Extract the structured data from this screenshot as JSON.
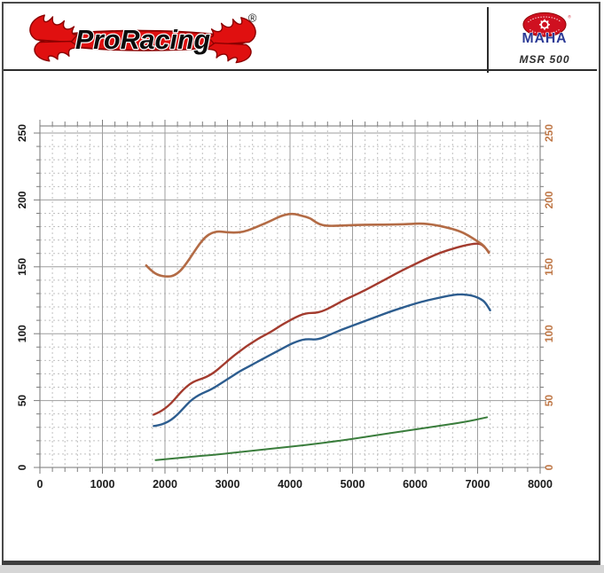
{
  "header": {
    "brand_logo_text": "ProRacing",
    "registered_mark": "®",
    "device_logo_text": "MAHA",
    "device_registered_mark": "®",
    "device_model_label": "MSR 500"
  },
  "colors": {
    "flame_red": "#e01010",
    "flame_outline": "#8a0000",
    "maha_red": "#cf1020",
    "maha_blue": "#2b3a96",
    "grid_major": "#9e9e9e",
    "grid_minor": "#c0c0c0",
    "plot_border": "#8c8c8c",
    "axis_label_left": "#1a1a1a",
    "axis_label_right": "#bf7848"
  },
  "chart_data": {
    "type": "line",
    "title": "",
    "xlabel": "",
    "ylabel": "",
    "x_range": [
      0,
      8000
    ],
    "y_range": [
      0,
      255
    ],
    "x_ticks": [
      0,
      1000,
      2000,
      3000,
      4000,
      5000,
      6000,
      7000,
      8000
    ],
    "y_ticks_left": [
      0,
      50,
      100,
      150,
      200,
      250
    ],
    "y_ticks_right": [
      0,
      50,
      100,
      150,
      200,
      250
    ],
    "x_minor_step": 200,
    "y_minor_step": 10,
    "grid": "major-solid-minor-dashed",
    "legend": "none",
    "series": [
      {
        "name": "green-curve",
        "color": "#3a7d3c",
        "width": 2.0,
        "points": [
          [
            1850,
            5.5
          ],
          [
            2300,
            7.5
          ],
          [
            2800,
            9.5
          ],
          [
            3300,
            12
          ],
          [
            3800,
            14.5
          ],
          [
            4300,
            17
          ],
          [
            4800,
            20
          ],
          [
            5300,
            23.5
          ],
          [
            5800,
            27
          ],
          [
            6300,
            30.5
          ],
          [
            6800,
            34
          ],
          [
            7150,
            37.5
          ]
        ]
      },
      {
        "name": "blue-curve",
        "color": "#2d5d8f",
        "width": 2.4,
        "points": [
          [
            1820,
            31
          ],
          [
            1900,
            31.5
          ],
          [
            2000,
            33
          ],
          [
            2100,
            35.5
          ],
          [
            2200,
            39.5
          ],
          [
            2300,
            44.5
          ],
          [
            2400,
            49.5
          ],
          [
            2500,
            53
          ],
          [
            2600,
            55.5
          ],
          [
            2700,
            57.5
          ],
          [
            2800,
            60
          ],
          [
            2900,
            63
          ],
          [
            3000,
            66
          ],
          [
            3100,
            69
          ],
          [
            3200,
            72
          ],
          [
            3300,
            74.5
          ],
          [
            3400,
            77
          ],
          [
            3500,
            79.5
          ],
          [
            3600,
            82
          ],
          [
            3700,
            84.5
          ],
          [
            3800,
            87
          ],
          [
            3900,
            89.5
          ],
          [
            4000,
            92
          ],
          [
            4100,
            94
          ],
          [
            4200,
            95.5
          ],
          [
            4300,
            96
          ],
          [
            4400,
            95.5
          ],
          [
            4500,
            96.5
          ],
          [
            4600,
            98.5
          ],
          [
            4700,
            100.5
          ],
          [
            4800,
            102.5
          ],
          [
            5000,
            106
          ],
          [
            5200,
            109.5
          ],
          [
            5400,
            113
          ],
          [
            5600,
            116.5
          ],
          [
            5800,
            119.5
          ],
          [
            6000,
            122.5
          ],
          [
            6200,
            125
          ],
          [
            6400,
            127
          ],
          [
            6550,
            128.5
          ],
          [
            6700,
            129.5
          ],
          [
            6850,
            129
          ],
          [
            6950,
            128
          ],
          [
            7050,
            126
          ],
          [
            7120,
            123.5
          ],
          [
            7200,
            117.5
          ]
        ]
      },
      {
        "name": "red-curve",
        "color": "#a33b2e",
        "width": 2.4,
        "points": [
          [
            1820,
            39.5
          ],
          [
            1900,
            41
          ],
          [
            2000,
            44
          ],
          [
            2100,
            48
          ],
          [
            2200,
            53.5
          ],
          [
            2300,
            58.5
          ],
          [
            2400,
            62.5
          ],
          [
            2500,
            65
          ],
          [
            2600,
            66.5
          ],
          [
            2700,
            68.5
          ],
          [
            2800,
            71.5
          ],
          [
            2900,
            75.5
          ],
          [
            3000,
            79.5
          ],
          [
            3100,
            83.5
          ],
          [
            3200,
            87
          ],
          [
            3300,
            90.5
          ],
          [
            3400,
            93.5
          ],
          [
            3500,
            96.5
          ],
          [
            3600,
            99
          ],
          [
            3700,
            101.5
          ],
          [
            3800,
            104.5
          ],
          [
            3900,
            107.5
          ],
          [
            4000,
            110
          ],
          [
            4100,
            112.5
          ],
          [
            4200,
            114.5
          ],
          [
            4300,
            115.5
          ],
          [
            4400,
            115.5
          ],
          [
            4500,
            116.5
          ],
          [
            4600,
            118.5
          ],
          [
            4700,
            121
          ],
          [
            4800,
            123.5
          ],
          [
            4900,
            126
          ],
          [
            5000,
            128
          ],
          [
            5200,
            132.5
          ],
          [
            5400,
            137.5
          ],
          [
            5600,
            142.5
          ],
          [
            5800,
            147.5
          ],
          [
            6000,
            152
          ],
          [
            6200,
            156.5
          ],
          [
            6400,
            160.5
          ],
          [
            6600,
            163.5
          ],
          [
            6750,
            165.5
          ],
          [
            6900,
            167
          ],
          [
            7000,
            167.5
          ],
          [
            7080,
            166.5
          ],
          [
            7180,
            161
          ]
        ]
      },
      {
        "name": "orange-curve",
        "color": "#b36b45",
        "width": 2.6,
        "points": [
          [
            1700,
            151
          ],
          [
            1780,
            147
          ],
          [
            1900,
            143.5
          ],
          [
            2050,
            142.5
          ],
          [
            2150,
            143.5
          ],
          [
            2250,
            147
          ],
          [
            2350,
            153
          ],
          [
            2450,
            160
          ],
          [
            2550,
            167
          ],
          [
            2650,
            172.5
          ],
          [
            2750,
            175.5
          ],
          [
            2850,
            176.5
          ],
          [
            2950,
            176
          ],
          [
            3100,
            175.5
          ],
          [
            3250,
            176
          ],
          [
            3400,
            178.5
          ],
          [
            3550,
            181.5
          ],
          [
            3700,
            184.5
          ],
          [
            3850,
            188
          ],
          [
            3980,
            189.5
          ],
          [
            4080,
            189.5
          ],
          [
            4200,
            188
          ],
          [
            4320,
            186.5
          ],
          [
            4420,
            183
          ],
          [
            4520,
            181
          ],
          [
            4650,
            180.5
          ],
          [
            4900,
            181
          ],
          [
            5200,
            181.5
          ],
          [
            5600,
            181.5
          ],
          [
            5900,
            182
          ],
          [
            6100,
            182.5
          ],
          [
            6300,
            181.5
          ],
          [
            6500,
            179.5
          ],
          [
            6700,
            177
          ],
          [
            6850,
            173.5
          ],
          [
            7000,
            169
          ],
          [
            7100,
            166
          ],
          [
            7180,
            160.5
          ]
        ]
      }
    ]
  }
}
